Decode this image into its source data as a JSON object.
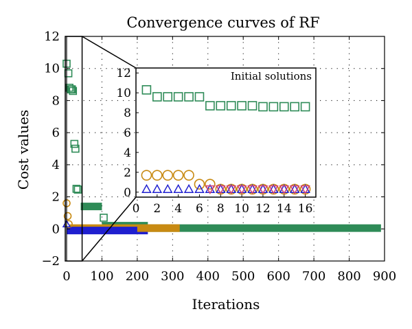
{
  "colors": {
    "green": "#2e8b57",
    "orange": "#c88a12",
    "blue": "#1f1fcf",
    "pink": "#d23c6e"
  },
  "chart_data": {
    "type": "scatter",
    "title": "Convergence curves of RF",
    "xlabel": "Iterations",
    "ylabel": "Cost values",
    "xlim": [
      0,
      900
    ],
    "ylim": [
      -2,
      12
    ],
    "xticks": [
      "0",
      "100",
      "200",
      "300",
      "400",
      "500",
      "600",
      "700",
      "800",
      "900"
    ],
    "yticks": [
      "−2",
      "0",
      "2",
      "4",
      "6",
      "8",
      "10",
      "12"
    ],
    "grid": true,
    "main_series": [
      {
        "color": "green",
        "marker": "square",
        "points": [
          [
            0,
            10.3
          ],
          [
            5,
            9.7
          ],
          [
            8,
            8.8
          ],
          [
            12,
            8.7
          ],
          [
            15,
            8.7
          ],
          [
            18,
            8.6
          ],
          [
            22,
            5.3
          ],
          [
            25,
            5.0
          ],
          [
            28,
            2.5
          ],
          [
            32,
            2.45
          ]
        ],
        "bars": [
          {
            "x0": 40,
            "x1": 100,
            "y": 1.4
          },
          {
            "x0": 100,
            "x1": 230,
            "y": 0.2
          },
          {
            "x0": 230,
            "x1": 890,
            "y": 0.05
          }
        ],
        "extra_points": [
          [
            105,
            0.7
          ]
        ]
      },
      {
        "color": "orange",
        "marker": "circle",
        "points": [
          [
            0,
            1.6
          ],
          [
            3,
            0.8
          ],
          [
            6,
            0.3
          ]
        ],
        "bars": [
          {
            "x0": 8,
            "x1": 320,
            "y": 0.05
          }
        ],
        "extra_points": []
      },
      {
        "color": "blue",
        "marker": "triangle",
        "points": [
          [
            0,
            0.3
          ]
        ],
        "bars": [
          {
            "x0": 0,
            "x1": 230,
            "y": -0.1
          }
        ],
        "extra_points": []
      }
    ],
    "zoom_box": {
      "x0": 0,
      "x1": 40,
      "y0": -2,
      "y1": 12
    },
    "inset": {
      "title": "Initial solutions",
      "xlim": [
        0,
        17
      ],
      "ylim": [
        -0.5,
        12.5
      ],
      "xticks": [
        "0",
        "2",
        "4",
        "6",
        "8",
        "10",
        "12",
        "14",
        "16"
      ],
      "yticks": [
        "0",
        "2",
        "4",
        "6",
        "8",
        "10",
        "12"
      ],
      "series": [
        {
          "color": "green",
          "marker": "square",
          "x": [
            1,
            2,
            3,
            4,
            5,
            6,
            7,
            8,
            9,
            10,
            11,
            12,
            13,
            14,
            15,
            16
          ],
          "y": [
            10.3,
            9.6,
            9.6,
            9.6,
            9.6,
            9.6,
            8.7,
            8.7,
            8.7,
            8.7,
            8.7,
            8.6,
            8.6,
            8.6,
            8.6,
            8.6
          ]
        },
        {
          "color": "orange",
          "marker": "circle",
          "x": [
            1,
            2,
            3,
            4,
            5,
            6,
            7,
            8,
            9,
            10,
            11,
            12,
            13,
            14,
            15,
            16
          ],
          "y": [
            1.7,
            1.7,
            1.7,
            1.7,
            1.7,
            0.8,
            0.8,
            0.3,
            0.3,
            0.3,
            0.3,
            0.3,
            0.3,
            0.3,
            0.3,
            0.3
          ]
        },
        {
          "color": "blue",
          "marker": "triangle",
          "x": [
            1,
            2,
            3,
            4,
            5,
            6,
            7,
            8,
            9,
            10,
            11,
            12,
            13,
            14,
            15,
            16
          ],
          "y": [
            0.3,
            0.3,
            0.3,
            0.3,
            0.3,
            0.3,
            0.3,
            0.3,
            0.3,
            0.3,
            0.3,
            0.3,
            0.3,
            0.3,
            0.3,
            0.3
          ]
        },
        {
          "color": "pink",
          "marker": "triangle-down",
          "x": [
            7,
            8,
            9,
            10,
            11,
            12,
            13,
            14,
            15,
            16
          ],
          "y": [
            0.3,
            0.3,
            0.3,
            0.3,
            0.3,
            0.3,
            0.3,
            0.3,
            0.3,
            0.3
          ]
        }
      ]
    }
  }
}
